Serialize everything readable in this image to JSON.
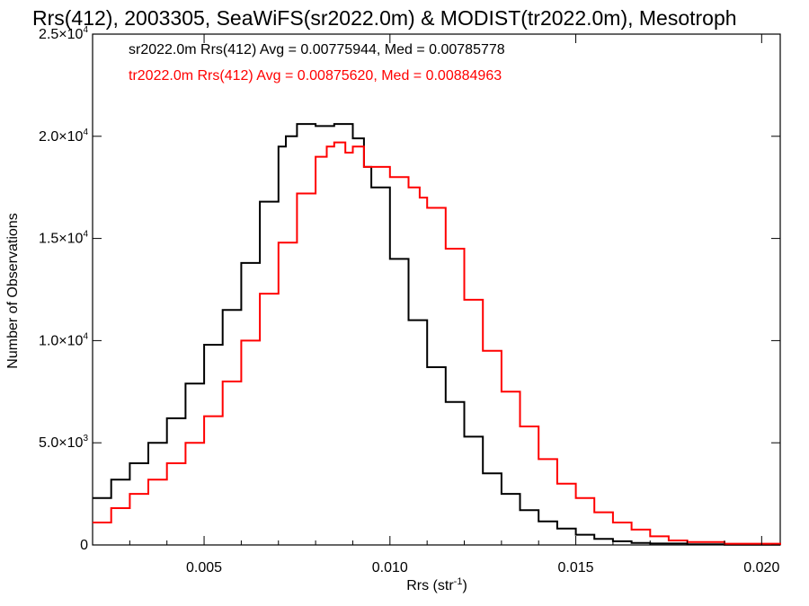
{
  "chart_data": {
    "type": "line",
    "title": "Rrs(412), 2003305, SeaWiFS(sr2022.0m) & MODIST(tr2022.0m), Mesotroph",
    "xlabel": "Rrs (str",
    "xlabel_sup": "-1",
    "xlabel_end": ")",
    "ylabel": "Number of Observations",
    "xlim": [
      0.002,
      0.0205
    ],
    "ylim": [
      0,
      25000
    ],
    "x_ticks": [
      {
        "value": 0.005,
        "label": "0.005"
      },
      {
        "value": 0.01,
        "label": "0.010"
      },
      {
        "value": 0.015,
        "label": "0.015"
      },
      {
        "value": 0.02,
        "label": "0.020"
      }
    ],
    "y_ticks": [
      {
        "value": 0,
        "label": "0",
        "sup": ""
      },
      {
        "value": 5000,
        "label": "5.0×10",
        "sup": "3"
      },
      {
        "value": 10000,
        "label": "1.0×10",
        "sup": "4"
      },
      {
        "value": 15000,
        "label": "1.5×10",
        "sup": "4"
      },
      {
        "value": 20000,
        "label": "2.0×10",
        "sup": "4"
      },
      {
        "value": 25000,
        "label": "2.5×10",
        "sup": "4"
      }
    ],
    "grid": false,
    "legend_position": "top-left",
    "annotations": [
      {
        "text": "sr2022.0m Rrs(412) Avg = 0.00775944, Med = 0.00785778",
        "color": "#000000"
      },
      {
        "text": "tr2022.0m Rrs(412) Avg = 0.00875620, Med = 0.00884963",
        "color": "#ff0000"
      }
    ],
    "series": [
      {
        "color": "#000000",
        "x": [
          0.002,
          0.0025,
          0.003,
          0.0035,
          0.004,
          0.0045,
          0.005,
          0.0055,
          0.006,
          0.0065,
          0.007,
          0.0072,
          0.0075,
          0.008,
          0.0085,
          0.0088,
          0.009,
          0.0093,
          0.0095,
          0.01,
          0.0105,
          0.011,
          0.0115,
          0.012,
          0.0125,
          0.013,
          0.0135,
          0.014,
          0.0145,
          0.015,
          0.0155,
          0.016,
          0.0165,
          0.017,
          0.018,
          0.019,
          0.0205
        ],
        "y": [
          2300,
          3200,
          4000,
          5000,
          6200,
          7900,
          9800,
          11500,
          13800,
          16800,
          19500,
          20000,
          20600,
          20500,
          20600,
          20600,
          19900,
          18500,
          17500,
          14000,
          11000,
          8700,
          7000,
          5300,
          3500,
          2500,
          1700,
          1150,
          800,
          500,
          300,
          180,
          100,
          70,
          30,
          12,
          0
        ]
      },
      {
        "color": "#ff0000",
        "x": [
          0.002,
          0.0025,
          0.003,
          0.0035,
          0.004,
          0.0045,
          0.005,
          0.0055,
          0.006,
          0.0065,
          0.007,
          0.0075,
          0.008,
          0.0083,
          0.0085,
          0.0088,
          0.009,
          0.0093,
          0.0095,
          0.01,
          0.0105,
          0.0108,
          0.011,
          0.0115,
          0.012,
          0.0125,
          0.013,
          0.0135,
          0.014,
          0.0145,
          0.015,
          0.0155,
          0.016,
          0.0165,
          0.017,
          0.0175,
          0.018,
          0.019,
          0.0205
        ],
        "y": [
          1100,
          1800,
          2500,
          3200,
          4000,
          5000,
          6300,
          8000,
          10000,
          12300,
          14800,
          17200,
          19000,
          19500,
          19700,
          19200,
          19500,
          18500,
          18500,
          18000,
          17500,
          17000,
          16500,
          14500,
          12000,
          9500,
          7500,
          5800,
          4200,
          3000,
          2300,
          1600,
          1100,
          750,
          420,
          220,
          140,
          60,
          0
        ]
      }
    ]
  }
}
